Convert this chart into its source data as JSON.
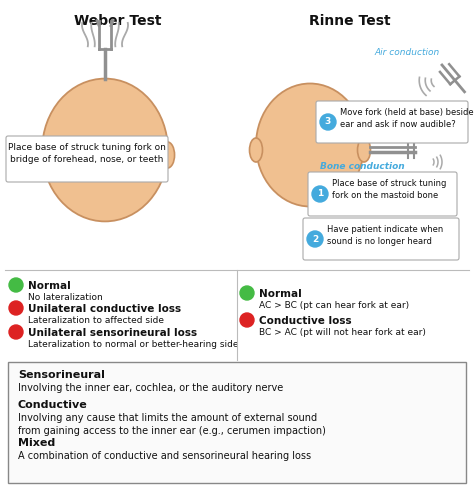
{
  "bg_color": "#ffffff",
  "title_weber": "Weber Test",
  "title_rinne": "Rinne Test",
  "weber_callout": "Place base of struck tuning fork on\nbridge of forehead, nose, or teeth",
  "rinne_air_label": "Air conduction",
  "rinne_step3_text": "Move fork (held at base) beside\near and ask if now audible?",
  "rinne_bone_label": "Bone conduction",
  "rinne_step1_text": "Place base of struck tuning\nfork on the mastoid bone",
  "rinne_step2_text": "Have patient indicate when\nsound is no longer heard",
  "weber_normal_bold": "Normal",
  "weber_normal_sub": "No lateralization",
  "weber_cond_bold": "Unilateral conductive loss",
  "weber_cond_sub": "Lateralization to affected side",
  "weber_senso_bold": "Unilateral sensorineural loss",
  "weber_senso_sub": "Lateralization to normal or better-hearing side",
  "rinne_normal_bold": "Normal",
  "rinne_normal_sub": "AC > BC (pt can hear fork at ear)",
  "rinne_cond_bold": "Conductive loss",
  "rinne_cond_sub": "BC > AC (pt will not hear fork at ear)",
  "box_senso_bold": "Sensorineural",
  "box_senso_sub": "Involving the inner ear, cochlea, or the auditory nerve",
  "box_cond_bold": "Conductive",
  "box_cond_sub": "Involving any cause that limits the amount of external sound\nfrom gaining access to the inner ear (e.g., cerumen impaction)",
  "box_mixed_bold": "Mixed",
  "box_mixed_sub": "A combination of conductive and sensorineural hearing loss",
  "green_color": "#44bb44",
  "red_color": "#dd2222",
  "blue_color": "#44aadd",
  "callout_bg": "#f0f0f0",
  "callout_border": "#aaaaaa",
  "blue_text_color": "#44aadd",
  "box_border": "#888888",
  "text_color": "#111111",
  "head_fill": "#f0c090",
  "head_edge": "#c89060",
  "fork_color": "#909090",
  "wave_color": "#aaaaaa"
}
